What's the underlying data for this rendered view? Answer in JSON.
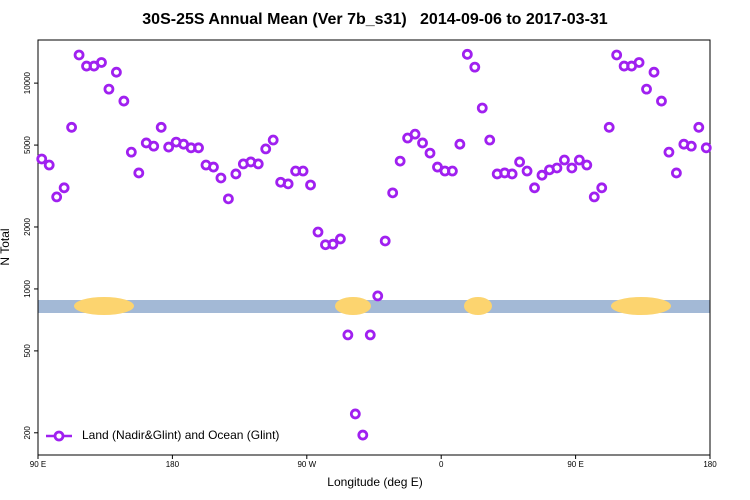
{
  "chart_data": {
    "type": "scatter",
    "title": "30S-25S Annual Mean (Ver 7b_s31)   2014-09-06 to 2017-03-31",
    "x_label": "Longitude (deg E)",
    "y_label": "N Total",
    "log_y": true,
    "legend_position": "bottom-left",
    "xlim": [
      90,
      540
    ],
    "xticks": [
      {
        "value": 90,
        "label": "90 E"
      },
      {
        "value": 180,
        "label": "180"
      },
      {
        "value": 270,
        "label": "90 W"
      },
      {
        "value": 360,
        "label": "0"
      },
      {
        "value": 450,
        "label": "90 E"
      },
      {
        "value": 540,
        "label": "180"
      }
    ],
    "ylim": [
      156,
      16200
    ],
    "yticks": [
      200,
      500,
      1000,
      2000,
      5000,
      10000
    ],
    "series": [
      {
        "name": "Land (Nadir&Glint) and Ocean (Glint)",
        "color": "#a020f0",
        "x": [
          92.5,
          97.5,
          102.5,
          107.5,
          112.5,
          117.5,
          122.5,
          127.5,
          132.5,
          137.5,
          142.5,
          147.5,
          152.5,
          157.5,
          162.5,
          167.5,
          172.5,
          177.5,
          182.5,
          187.5,
          192.5,
          197.5,
          202.5,
          207.5,
          212.5,
          217.5,
          222.5,
          227.5,
          232.5,
          237.5,
          242.5,
          247.5,
          252.5,
          257.5,
          262.5,
          267.5,
          272.5,
          277.5,
          282.5,
          287.5,
          292.5,
          297.5,
          302.5,
          307.5,
          312.5,
          317.5,
          322.5,
          327.5,
          332.5,
          337.5,
          342.5,
          347.5,
          352.5,
          357.5,
          362.5,
          367.5,
          372.5,
          377.5,
          382.5,
          387.5,
          392.5,
          397.5,
          402.5,
          407.5,
          412.5,
          417.5,
          422.5,
          427.5,
          432.5,
          437.5,
          442.5,
          447.5,
          452.5,
          457.5,
          462.5,
          467.5,
          472.5,
          477.5,
          482.5,
          487.5,
          492.5,
          497.5,
          502.5,
          507.5,
          512.5,
          517.5,
          522.5,
          527.5,
          532.5,
          537.5
        ],
        "values": [
          4280,
          4000,
          2800,
          3100,
          6100,
          13700,
          12100,
          12100,
          12600,
          9350,
          11300,
          8180,
          4620,
          3660,
          5120,
          4940,
          6100,
          4890,
          5170,
          5050,
          4850,
          4850,
          4000,
          3910,
          3460,
          2740,
          3620,
          4050,
          4140,
          4050,
          4790,
          5290,
          3300,
          3240,
          3740,
          3740,
          3200,
          1890,
          1640,
          1650,
          1750,
          598,
          247,
          195,
          598,
          925,
          1710,
          2930,
          4180,
          5410,
          5650,
          5120,
          4570,
          3910,
          3740,
          3740,
          5050,
          13800,
          11960,
          7570,
          5290,
          3620,
          3660,
          3620,
          4140,
          3740,
          3100,
          3570,
          3790,
          3870,
          4230,
          3870,
          4230,
          4000,
          2800,
          3100,
          6100,
          13700,
          12100,
          12100,
          12600,
          9350,
          11300,
          8180,
          4620,
          3660,
          5050,
          4940,
          6100,
          4850
        ]
      }
    ]
  }
}
